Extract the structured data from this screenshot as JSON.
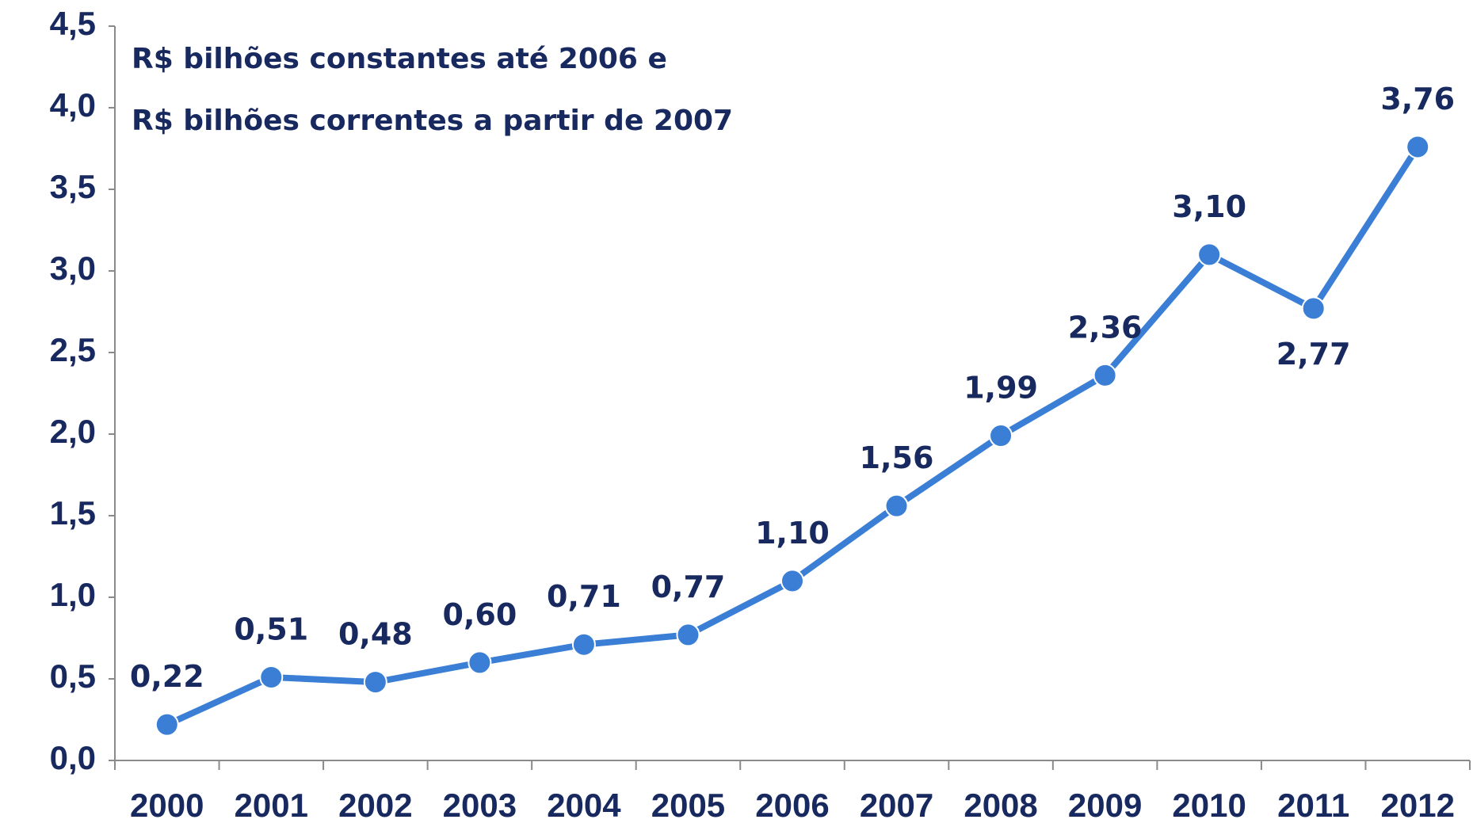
{
  "chart_data": {
    "type": "line",
    "annotations": [
      "R$ bilhões constantes até 2006 e",
      "R$ bilhões correntes a partir de 2007"
    ],
    "categories": [
      "2000",
      "2001",
      "2002",
      "2003",
      "2004",
      "2005",
      "2006",
      "2007",
      "2008",
      "2009",
      "2010",
      "2011",
      "2012"
    ],
    "series": [
      {
        "name": "R$ bilhões",
        "color": "#3a7fd5",
        "values": [
          0.22,
          0.51,
          0.48,
          0.6,
          0.71,
          0.77,
          1.1,
          1.56,
          1.99,
          2.36,
          3.1,
          2.77,
          3.76
        ],
        "value_labels": [
          "0,22",
          "0,51",
          "0,48",
          "0,60",
          "0,71",
          "0,77",
          "1,10",
          "1,56",
          "1,99",
          "2,36",
          "3,10",
          "2,77",
          "3,76"
        ]
      }
    ],
    "ylim": [
      0,
      4.5
    ],
    "yticks": [
      {
        "value": 0,
        "label": "0,0"
      },
      {
        "value": 0.5,
        "label": "0,5"
      },
      {
        "value": 1,
        "label": "1,0"
      },
      {
        "value": 1.5,
        "label": "1,5"
      },
      {
        "value": 2,
        "label": "2,0"
      },
      {
        "value": 2.5,
        "label": "2,5"
      },
      {
        "value": 3,
        "label": "3,0"
      },
      {
        "value": 3.5,
        "label": "3,5"
      },
      {
        "value": 4,
        "label": "4,0"
      },
      {
        "value": 4.5,
        "label": "4,5"
      }
    ],
    "grid": false
  }
}
